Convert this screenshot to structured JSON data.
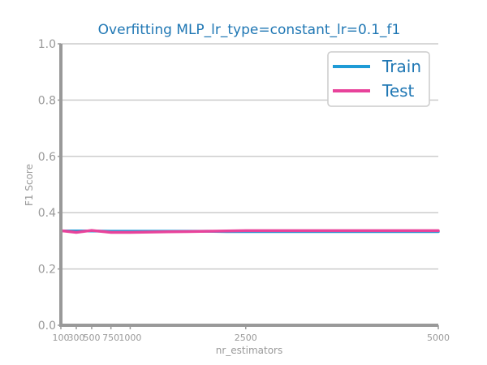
{
  "chart_data": {
    "type": "line",
    "title": "Overfitting MLP_lr_type=constant_lr=0.1_f1",
    "xlabel": "nr_estimators",
    "ylabel": "F1 Score",
    "x": [
      100,
      300,
      500,
      750,
      1000,
      1250,
      1500,
      1750,
      2000,
      2250,
      2500,
      2750,
      3000,
      3250,
      3500,
      3750,
      4000,
      4250,
      4500,
      4750,
      5000
    ],
    "xticks": [
      100,
      300,
      500,
      750,
      1000,
      2500,
      5000
    ],
    "xtick_labels": [
      "100",
      "300",
      "500",
      "750",
      "1000",
      "2500",
      "5000"
    ],
    "xlim": [
      100,
      5000
    ],
    "ylim": [
      0.0,
      1.0
    ],
    "yticks": [
      0.0,
      0.2,
      0.4,
      0.6,
      0.8,
      1.0
    ],
    "ytick_labels": [
      "0.0",
      "0.2",
      "0.4",
      "0.6",
      "0.8",
      "1.0"
    ],
    "grid": "horizontal",
    "legend_position": "top-right",
    "series": [
      {
        "name": "Train",
        "color": "#1f9bd6",
        "values": [
          0.335,
          0.335,
          0.335,
          0.334,
          0.334,
          0.334,
          0.334,
          0.334,
          0.334,
          0.333,
          0.333,
          0.333,
          0.333,
          0.333,
          0.333,
          0.333,
          0.333,
          0.333,
          0.333,
          0.333,
          0.333
        ]
      },
      {
        "name": "Test",
        "color": "#e8439b",
        "values": [
          0.336,
          0.33,
          0.337,
          0.33,
          0.33,
          0.331,
          0.332,
          0.333,
          0.334,
          0.335,
          0.336,
          0.336,
          0.336,
          0.336,
          0.336,
          0.336,
          0.336,
          0.336,
          0.336,
          0.336,
          0.336
        ]
      }
    ],
    "colors": {
      "title": "#1f77b4",
      "legend_text": "#1f77b4",
      "axis": "#999999",
      "grid": "#cccccc",
      "tick_text": "#999999"
    }
  }
}
